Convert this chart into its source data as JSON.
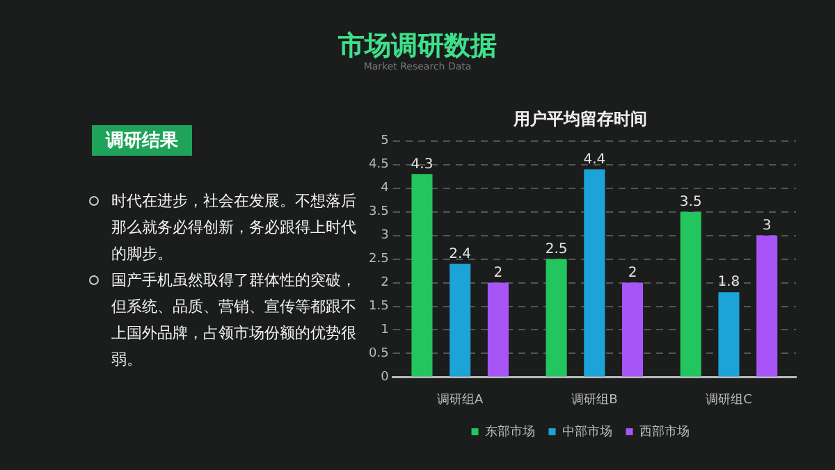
{
  "chart_data": {
    "type": "bar",
    "title": "用户平均留存时间",
    "categories": [
      "调研组A",
      "调研组B",
      "调研组C"
    ],
    "series": [
      {
        "name": "东部市场",
        "color": "#22c55e",
        "values": [
          4.3,
          2.5,
          3.5
        ]
      },
      {
        "name": "中部市场",
        "color": "#1ca3d8",
        "values": [
          2.4,
          4.4,
          1.8
        ]
      },
      {
        "name": "西部市场",
        "color": "#a855f7",
        "values": [
          2,
          2,
          3
        ]
      }
    ],
    "ylim": [
      0,
      5
    ],
    "yticks": [
      0,
      0.5,
      1,
      1.5,
      2,
      2.5,
      3,
      3.5,
      4,
      4.5,
      5
    ],
    "grid": "y",
    "line_style": "dashed",
    "legend": "bottom",
    "data_labels": true,
    "annotations": [
      "市场调研数据",
      "Market Research Data",
      "调研结果",
      "时代在进步，社会在发展。不想落后那么就务必得创新，务必跟得上时代的脚步。",
      "国产手机虽然取得了群体性的突破，但系统、品质、营销、宣传等都跟不上国外品牌，占领市场份额的优势很弱。"
    ]
  }
}
